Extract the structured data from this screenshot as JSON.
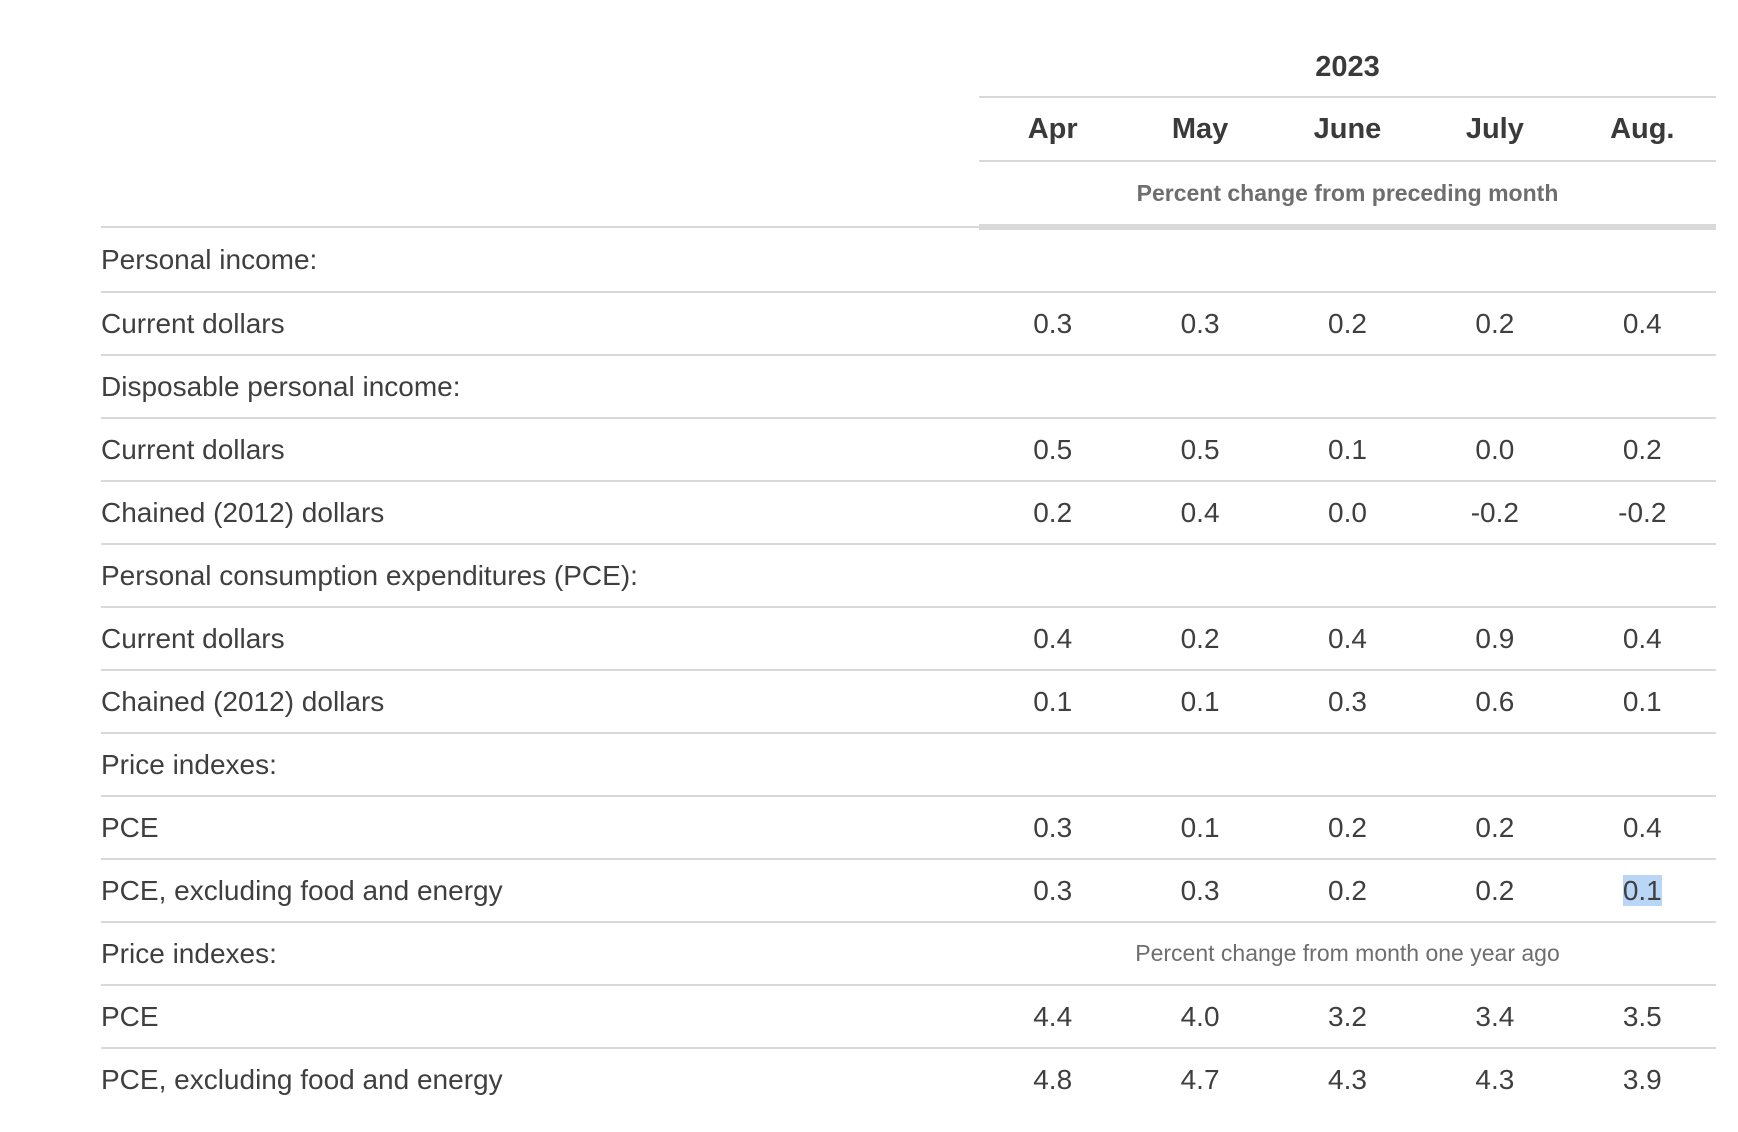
{
  "header": {
    "year": "2023",
    "months": [
      "Apr",
      "May",
      "June",
      "July",
      "Aug."
    ],
    "unit_monthly": "Percent change from preceding month",
    "unit_yearly": "Percent change from month one year ago"
  },
  "rows": [
    {
      "label": "Personal income:",
      "type": "section",
      "values": []
    },
    {
      "label": "Current dollars",
      "type": "item",
      "values": [
        "0.3",
        "0.3",
        "0.2",
        "0.2",
        "0.4"
      ]
    },
    {
      "label": "Disposable personal income:",
      "type": "section",
      "values": []
    },
    {
      "label": "Current dollars",
      "type": "item",
      "values": [
        "0.5",
        "0.5",
        "0.1",
        "0.0",
        "0.2"
      ]
    },
    {
      "label": "Chained (2012) dollars",
      "type": "item",
      "values": [
        "0.2",
        "0.4",
        "0.0",
        "-0.2",
        "-0.2"
      ]
    },
    {
      "label": "Personal consumption expenditures (PCE):",
      "type": "section",
      "values": []
    },
    {
      "label": "Current dollars",
      "type": "item",
      "values": [
        "0.4",
        "0.2",
        "0.4",
        "0.9",
        "0.4"
      ]
    },
    {
      "label": "Chained (2012) dollars",
      "type": "item",
      "values": [
        "0.1",
        "0.1",
        "0.3",
        "0.6",
        "0.1"
      ]
    },
    {
      "label": "Price indexes:",
      "type": "section",
      "values": []
    },
    {
      "label": "PCE",
      "type": "item",
      "values": [
        "0.3",
        "0.1",
        "0.2",
        "0.2",
        "0.4"
      ]
    },
    {
      "label": "PCE, excluding food and energy",
      "type": "item",
      "values": [
        "0.3",
        "0.3",
        "0.2",
        "0.2",
        "0.1"
      ],
      "selected_index": 4
    },
    {
      "label": "Price indexes:",
      "type": "section",
      "values": [],
      "note": "Percent change from month one year ago"
    },
    {
      "label": "PCE",
      "type": "item",
      "values": [
        "4.4",
        "4.0",
        "3.2",
        "3.4",
        "3.5"
      ]
    },
    {
      "label": "PCE, excluding food and energy",
      "type": "item",
      "values": [
        "4.8",
        "4.7",
        "4.3",
        "4.3",
        "3.9"
      ]
    }
  ],
  "colors": {
    "text": "#404040",
    "rule": "#d9d9d9",
    "selection": "#b9d6f7"
  }
}
